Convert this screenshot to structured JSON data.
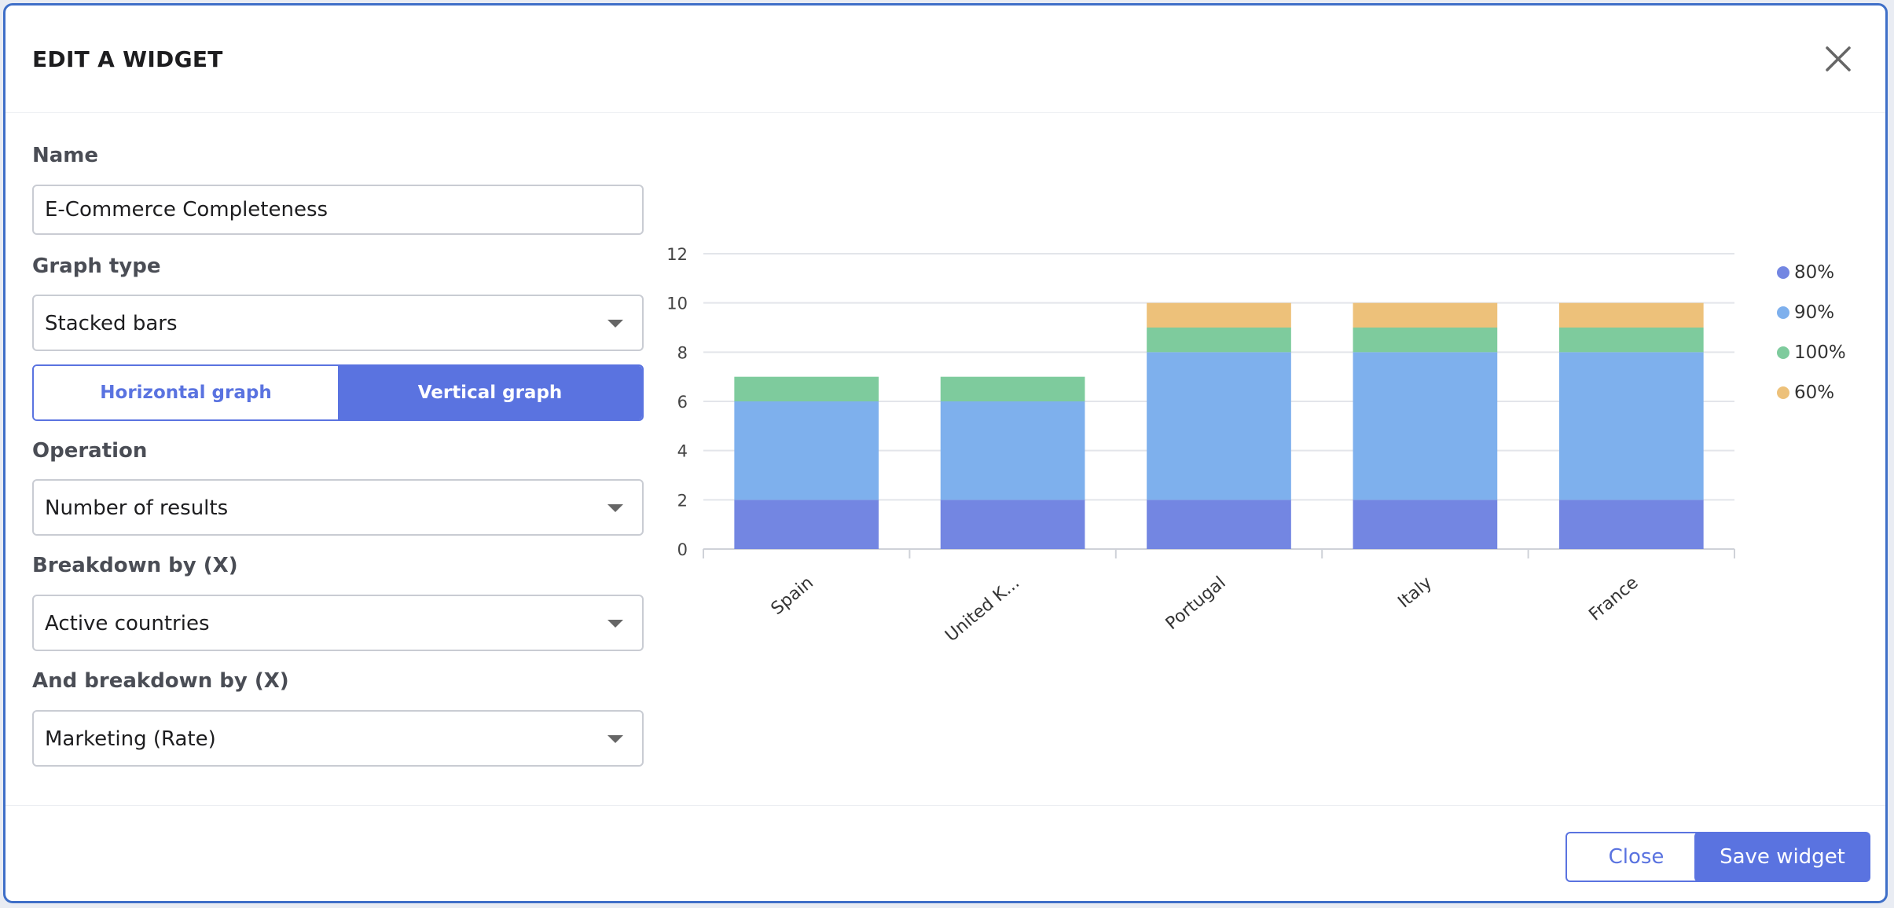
{
  "dialog": {
    "title": "EDIT A WIDGET",
    "close_icon": "close-icon"
  },
  "form": {
    "name_label": "Name",
    "name_value": "E-Commerce Completeness",
    "graph_type_label": "Graph type",
    "graph_type_value": "Stacked bars",
    "orientation": {
      "horizontal_label": "Horizontal graph",
      "vertical_label": "Vertical graph",
      "selected": "vertical"
    },
    "operation_label": "Operation",
    "operation_value": "Number of results",
    "breakdown_x_label": "Breakdown by (X)",
    "breakdown_x_value": "Active countries",
    "breakdown_x2_label": "And breakdown by (X)",
    "breakdown_x2_value": "Marketing (Rate)"
  },
  "footer": {
    "close_label": "Close",
    "save_label": "Save widget"
  },
  "colors": {
    "accent": "#5a73e0",
    "series_80": "#7386e2",
    "series_90": "#7eb0ed",
    "series_100": "#7ecb9d",
    "series_60": "#edc17a"
  },
  "chart_data": {
    "type": "bar",
    "stacked": true,
    "categories": [
      "Spain",
      "United K...",
      "Portugal",
      "Italy",
      "France"
    ],
    "series": [
      {
        "name": "80%",
        "values": [
          2,
          2,
          2,
          2,
          2
        ],
        "color": "#7386e2"
      },
      {
        "name": "90%",
        "values": [
          4,
          4,
          6,
          6,
          6
        ],
        "color": "#7eb0ed"
      },
      {
        "name": "100%",
        "values": [
          1,
          1,
          1,
          1,
          1
        ],
        "color": "#7ecb9d"
      },
      {
        "name": "60%",
        "values": [
          0,
          0,
          1,
          1,
          1
        ],
        "color": "#edc17a"
      }
    ],
    "ylim": [
      0,
      12
    ],
    "yticks": [
      "0",
      "2",
      "4",
      "6",
      "8",
      "10",
      "12"
    ],
    "grid": true,
    "legend_position": "right"
  }
}
